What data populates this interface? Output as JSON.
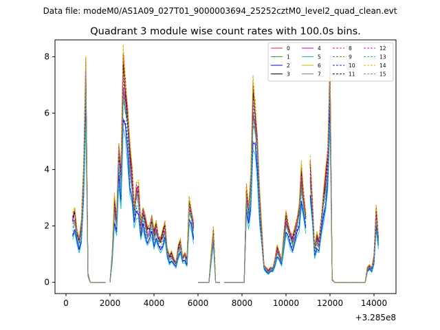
{
  "chart_data": {
    "type": "line",
    "suptitle": "Data file: modeM0/AS1A09_027T01_9000003694_25252cztM0_level2_quad_clean.evt",
    "title": "Quadrant 3 module wise count rates with 100.0s bins.",
    "xlabel": "",
    "ylabel": "",
    "x_offset_label": "+3.285e8",
    "xlim": [
      -500,
      15000
    ],
    "ylim": [
      -0.4,
      8.6
    ],
    "xticks": [
      0,
      2000,
      4000,
      6000,
      8000,
      10000,
      12000,
      14000
    ],
    "yticks": [
      0,
      2,
      4,
      6,
      8
    ],
    "legend_position": "upper-right",
    "legend_columns": 4,
    "x": [
      300,
      400,
      500,
      600,
      700,
      800,
      900,
      1000,
      1100,
      1200,
      1300,
      1400,
      1500,
      1600,
      1700,
      1800,
      1900,
      2000,
      2100,
      2200,
      2300,
      2400,
      2500,
      2600,
      2700,
      2800,
      2900,
      3000,
      3100,
      3200,
      3300,
      3400,
      3500,
      3600,
      3700,
      3800,
      3900,
      4000,
      4100,
      4200,
      4300,
      4400,
      4500,
      4600,
      4700,
      4800,
      4900,
      5000,
      5100,
      5200,
      5300,
      5400,
      5500,
      5600,
      5700,
      5800,
      5900,
      6000,
      6100,
      6200,
      6300,
      6400,
      6500,
      6600,
      6700,
      6800,
      6900,
      7000,
      7100,
      7200,
      7300,
      7400,
      7500,
      7600,
      7700,
      7800,
      7900,
      8000,
      8100,
      8200,
      8300,
      8400,
      8500,
      8600,
      8700,
      8800,
      8900,
      9000,
      9100,
      9200,
      9300,
      9400,
      9500,
      9600,
      9700,
      9800,
      9900,
      10000,
      10100,
      10200,
      10300,
      10400,
      10500,
      10600,
      10700,
      10800,
      10900,
      11000,
      11100,
      11200,
      11300,
      11400,
      11500,
      11600,
      11700,
      11800,
      11900,
      12000,
      12100,
      12200,
      12300,
      12400,
      12500,
      12600,
      12700,
      12800,
      12900,
      13000,
      13100,
      13200,
      13300,
      13400,
      13500,
      13600,
      13700,
      13800,
      13900,
      14000,
      14100,
      14200,
      14300
    ],
    "segments": [
      [
        0,
        15
      ],
      [
        17,
        55
      ],
      [
        57,
        67
      ],
      [
        69,
        106
      ],
      [
        108,
        139
      ]
    ],
    "series": [
      {
        "name": "0",
        "color": "#d62728",
        "dash": "solid"
      },
      {
        "name": "1",
        "color": "#2ca02c",
        "dash": "solid"
      },
      {
        "name": "2",
        "color": "#0000ee",
        "dash": "solid"
      },
      {
        "name": "3",
        "color": "#000000",
        "dash": "solid"
      },
      {
        "name": "4",
        "color": "#c000c0",
        "dash": "solid"
      },
      {
        "name": "5",
        "color": "#17becf",
        "dash": "solid"
      },
      {
        "name": "6",
        "color": "#c9b400",
        "dash": "solid"
      },
      {
        "name": "7",
        "color": "#7f7f7f",
        "dash": "solid"
      },
      {
        "name": "8",
        "color": "#e8112d",
        "dash": "dashed"
      },
      {
        "name": "9",
        "color": "#2e8b2e",
        "dash": "dashed"
      },
      {
        "name": "10",
        "color": "#1f1fd6",
        "dash": "dashed"
      },
      {
        "name": "11",
        "color": "#111111",
        "dash": "dashed"
      },
      {
        "name": "12",
        "color": "#d000d0",
        "dash": "dashed"
      },
      {
        "name": "13",
        "color": "#1fb7b7",
        "dash": "dashed"
      },
      {
        "name": "14",
        "color": "#d4b000",
        "dash": "dashed"
      },
      {
        "name": "15",
        "color": "#888888",
        "dash": "dashed"
      }
    ],
    "base": [
      2.2,
      2.4,
      1.8,
      1.5,
      2.0,
      3.8,
      7.8,
      0.3,
      0.0,
      0.0,
      0.0,
      0.0,
      0.0,
      0.0,
      0.0,
      0.0,
      0.0,
      0.0,
      1.0,
      2.8,
      2.2,
      4.8,
      3.8,
      7.5,
      6.8,
      6.0,
      4.5,
      3.8,
      2.6,
      3.3,
      3.2,
      2.0,
      2.6,
      2.2,
      1.8,
      1.9,
      2.3,
      1.7,
      2.0,
      1.6,
      1.5,
      1.7,
      2.0,
      1.2,
      0.9,
      1.0,
      0.8,
      0.7,
      1.2,
      1.4,
      0.9,
      1.0,
      0.8,
      2.8,
      2.5,
      2.0,
      0.0,
      0.0,
      0.0,
      0.0,
      0.0,
      0.0,
      0.0,
      1.0,
      1.8,
      0.0,
      0.0,
      0.0,
      0.0,
      0.0,
      0.0,
      0.0,
      0.0,
      0.0,
      0.0,
      0.0,
      0.0,
      0.0,
      0.0,
      3.2,
      2.6,
      3.6,
      6.5,
      6.0,
      5.0,
      3.0,
      1.8,
      0.6,
      0.5,
      0.4,
      0.5,
      0.5,
      0.8,
      1.2,
      1.0,
      0.8,
      1.6,
      2.3,
      2.0,
      1.7,
      1.5,
      1.8,
      2.2,
      2.6,
      3.8,
      3.0,
      2.4,
      4.6,
      4.0,
      2.8,
      1.2,
      1.6,
      1.4,
      2.2,
      3.0,
      3.6,
      4.4,
      7.8,
      0.1,
      0.0,
      0.0,
      0.0,
      0.0,
      0.0,
      0.0,
      0.0,
      0.0,
      0.0,
      0.0,
      0.0,
      0.0,
      0.0,
      0.0,
      0.0,
      0.5,
      0.6,
      0.5,
      0.9,
      2.5,
      1.6
    ],
    "scales": [
      1.0,
      0.92,
      0.78,
      1.02,
      0.96,
      0.72,
      1.06,
      0.9,
      1.04,
      0.94,
      0.8,
      0.98,
      1.0,
      0.86,
      1.08,
      0.93
    ]
  }
}
